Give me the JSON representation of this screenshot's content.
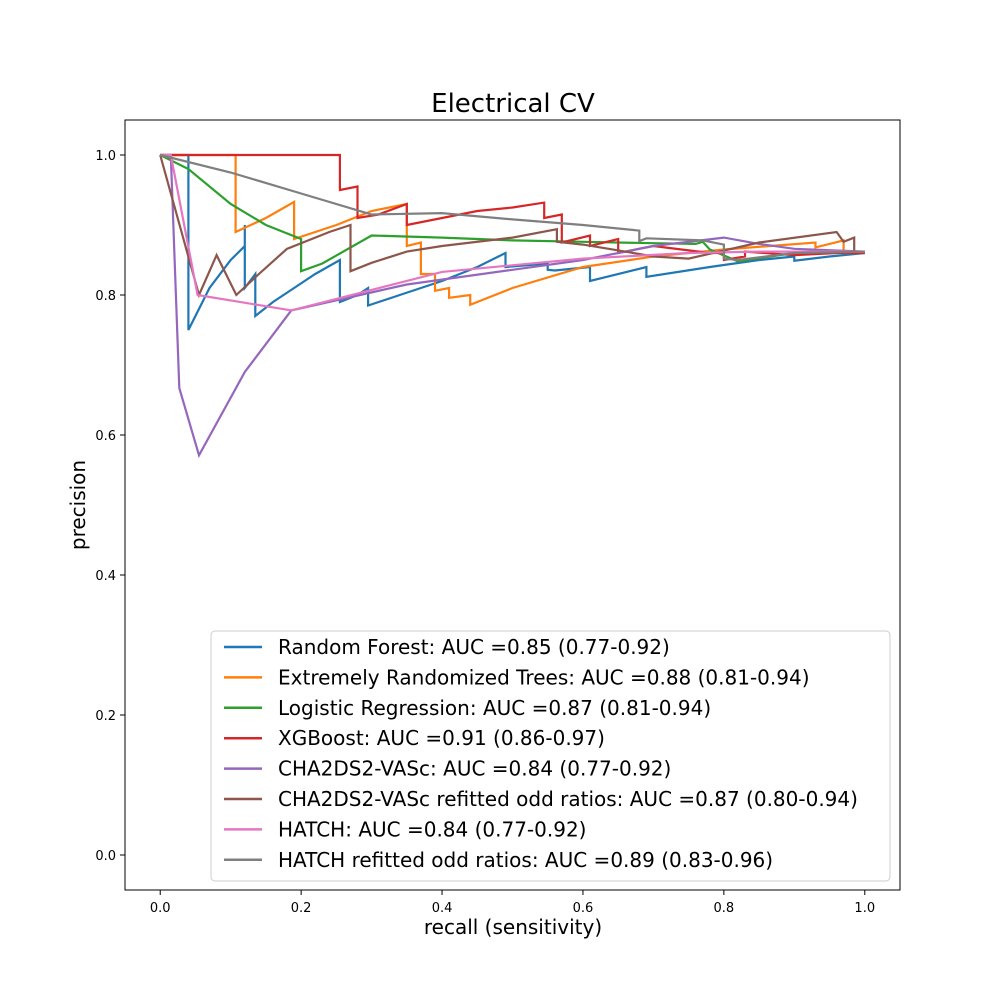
{
  "chart_data": {
    "type": "line",
    "title": "Electrical CV",
    "xlabel": "recall (sensitivity)",
    "ylabel": "precision",
    "xlim": [
      -0.05,
      1.05
    ],
    "ylim": [
      -0.05,
      1.05
    ],
    "xticks": [
      "0.0",
      "0.2",
      "0.4",
      "0.6",
      "0.8",
      "1.0"
    ],
    "yticks": [
      "0.0",
      "0.2",
      "0.4",
      "0.6",
      "0.8",
      "1.0"
    ],
    "legend_location": "lower right",
    "grid": false,
    "series": [
      {
        "name": "Random Forest: AUC =0.85 (0.77-0.92)",
        "color": "#1f77b4",
        "points": [
          [
            0.0,
            1.0
          ],
          [
            0.04,
            1.0
          ],
          [
            0.04,
            0.75
          ],
          [
            0.07,
            0.81
          ],
          [
            0.1,
            0.85
          ],
          [
            0.12,
            0.87
          ],
          [
            0.12,
            0.9
          ],
          [
            0.12,
            0.81
          ],
          [
            0.135,
            0.83
          ],
          [
            0.135,
            0.77
          ],
          [
            0.16,
            0.79
          ],
          [
            0.19,
            0.81
          ],
          [
            0.22,
            0.83
          ],
          [
            0.255,
            0.85
          ],
          [
            0.255,
            0.79
          ],
          [
            0.28,
            0.8
          ],
          [
            0.295,
            0.81
          ],
          [
            0.295,
            0.785
          ],
          [
            0.34,
            0.8
          ],
          [
            0.4,
            0.82
          ],
          [
            0.45,
            0.84
          ],
          [
            0.49,
            0.86
          ],
          [
            0.49,
            0.84
          ],
          [
            0.55,
            0.845
          ],
          [
            0.55,
            0.836
          ],
          [
            0.56,
            0.835
          ],
          [
            0.61,
            0.84
          ],
          [
            0.61,
            0.82
          ],
          [
            0.69,
            0.84
          ],
          [
            0.69,
            0.826
          ],
          [
            0.78,
            0.84
          ],
          [
            0.85,
            0.85
          ],
          [
            0.9,
            0.855
          ],
          [
            0.9,
            0.849
          ],
          [
            0.95,
            0.855
          ],
          [
            1.0,
            0.86
          ]
        ]
      },
      {
        "name": "Extremely Randomized Trees: AUC =0.88 (0.81-0.94)",
        "color": "#ff7f0e",
        "points": [
          [
            0.0,
            1.0
          ],
          [
            0.107,
            1.0
          ],
          [
            0.107,
            0.89
          ],
          [
            0.15,
            0.91
          ],
          [
            0.19,
            0.933
          ],
          [
            0.19,
            0.88
          ],
          [
            0.25,
            0.9
          ],
          [
            0.3,
            0.92
          ],
          [
            0.35,
            0.93
          ],
          [
            0.35,
            0.87
          ],
          [
            0.37,
            0.875
          ],
          [
            0.37,
            0.83
          ],
          [
            0.39,
            0.83
          ],
          [
            0.39,
            0.806
          ],
          [
            0.41,
            0.81
          ],
          [
            0.41,
            0.796
          ],
          [
            0.44,
            0.8
          ],
          [
            0.44,
            0.786
          ],
          [
            0.5,
            0.81
          ],
          [
            0.6,
            0.84
          ],
          [
            0.7,
            0.855
          ],
          [
            0.8,
            0.865
          ],
          [
            0.93,
            0.875
          ],
          [
            0.93,
            0.868
          ],
          [
            0.97,
            0.878
          ],
          [
            0.97,
            0.86
          ],
          [
            1.0,
            0.86
          ]
        ]
      },
      {
        "name": "Logistic Regression: AUC =0.87 (0.81-0.94)",
        "color": "#2ca02c",
        "points": [
          [
            0.0,
            1.0
          ],
          [
            0.04,
            0.98
          ],
          [
            0.1,
            0.93
          ],
          [
            0.15,
            0.9
          ],
          [
            0.2,
            0.88
          ],
          [
            0.2,
            0.834
          ],
          [
            0.23,
            0.845
          ],
          [
            0.3,
            0.885
          ],
          [
            0.4,
            0.882
          ],
          [
            0.5,
            0.878
          ],
          [
            0.6,
            0.876
          ],
          [
            0.7,
            0.874
          ],
          [
            0.76,
            0.873
          ],
          [
            0.77,
            0.876
          ],
          [
            0.78,
            0.865
          ],
          [
            0.82,
            0.848
          ],
          [
            0.9,
            0.86
          ],
          [
            1.0,
            0.862
          ]
        ]
      },
      {
        "name": "XGBoost: AUC =0.91 (0.86-0.97)",
        "color": "#d62728",
        "points": [
          [
            0.0,
            1.0
          ],
          [
            0.255,
            1.0
          ],
          [
            0.255,
            0.95
          ],
          [
            0.28,
            0.955
          ],
          [
            0.28,
            0.91
          ],
          [
            0.31,
            0.915
          ],
          [
            0.35,
            0.93
          ],
          [
            0.35,
            0.9
          ],
          [
            0.4,
            0.91
          ],
          [
            0.45,
            0.92
          ],
          [
            0.5,
            0.925
          ],
          [
            0.545,
            0.932
          ],
          [
            0.545,
            0.91
          ],
          [
            0.57,
            0.915
          ],
          [
            0.57,
            0.875
          ],
          [
            0.61,
            0.885
          ],
          [
            0.61,
            0.87
          ],
          [
            0.65,
            0.88
          ],
          [
            0.65,
            0.86
          ],
          [
            0.7,
            0.87
          ],
          [
            0.78,
            0.86
          ],
          [
            0.8,
            0.86
          ],
          [
            0.8,
            0.85
          ],
          [
            0.83,
            0.855
          ],
          [
            0.83,
            0.862
          ],
          [
            0.9,
            0.857
          ],
          [
            0.96,
            0.86
          ],
          [
            1.0,
            0.86
          ]
        ]
      },
      {
        "name": "CHA2DS2-VASc: AUC =0.84 (0.77-0.92)",
        "color": "#9467bd",
        "points": [
          [
            0.0,
            1.0
          ],
          [
            0.015,
            1.0
          ],
          [
            0.027,
            0.667
          ],
          [
            0.055,
            0.571
          ],
          [
            0.12,
            0.69
          ],
          [
            0.186,
            0.778
          ],
          [
            0.35,
            0.815
          ],
          [
            0.6,
            0.85
          ],
          [
            0.7,
            0.87
          ],
          [
            0.8,
            0.882
          ],
          [
            0.85,
            0.873
          ],
          [
            0.9,
            0.866
          ],
          [
            1.0,
            0.862
          ]
        ]
      },
      {
        "name": "CHA2DS2-VASc refitted odd ratios: AUC =0.87 (0.80-0.94)",
        "color": "#8c564b",
        "points": [
          [
            0.0,
            1.0
          ],
          [
            0.055,
            0.8
          ],
          [
            0.08,
            0.857
          ],
          [
            0.108,
            0.8
          ],
          [
            0.14,
            0.83
          ],
          [
            0.18,
            0.866
          ],
          [
            0.24,
            0.89
          ],
          [
            0.27,
            0.9
          ],
          [
            0.27,
            0.834
          ],
          [
            0.3,
            0.846
          ],
          [
            0.35,
            0.862
          ],
          [
            0.4,
            0.87
          ],
          [
            0.5,
            0.882
          ],
          [
            0.563,
            0.894
          ],
          [
            0.563,
            0.876
          ],
          [
            0.6,
            0.872
          ],
          [
            0.66,
            0.862
          ],
          [
            0.7,
            0.855
          ],
          [
            0.75,
            0.852
          ],
          [
            0.85,
            0.875
          ],
          [
            0.96,
            0.89
          ],
          [
            0.97,
            0.876
          ],
          [
            0.985,
            0.882
          ],
          [
            0.985,
            0.862
          ],
          [
            1.0,
            0.862
          ]
        ]
      },
      {
        "name": "HATCH: AUC =0.84 (0.77-0.92)",
        "color": "#e377c2",
        "points": [
          [
            0.0,
            1.0
          ],
          [
            0.015,
            1.0
          ],
          [
            0.053,
            0.8
          ],
          [
            0.186,
            0.778
          ],
          [
            0.4,
            0.833
          ],
          [
            0.6,
            0.852
          ],
          [
            0.75,
            0.86
          ],
          [
            0.85,
            0.862
          ],
          [
            1.0,
            0.862
          ]
        ]
      },
      {
        "name": "HATCH refitted odd ratios: AUC =0.89 (0.83-0.96)",
        "color": "#7f7f7f",
        "points": [
          [
            0.0,
            1.0
          ],
          [
            0.1,
            0.975
          ],
          [
            0.2,
            0.945
          ],
          [
            0.3,
            0.915
          ],
          [
            0.4,
            0.917
          ],
          [
            0.5,
            0.908
          ],
          [
            0.6,
            0.9
          ],
          [
            0.68,
            0.892
          ],
          [
            0.68,
            0.877
          ],
          [
            0.69,
            0.881
          ],
          [
            0.77,
            0.878
          ],
          [
            0.8,
            0.872
          ],
          [
            0.8,
            0.852
          ],
          [
            0.82,
            0.85
          ],
          [
            0.9,
            0.86
          ],
          [
            1.0,
            0.862
          ]
        ]
      }
    ]
  }
}
